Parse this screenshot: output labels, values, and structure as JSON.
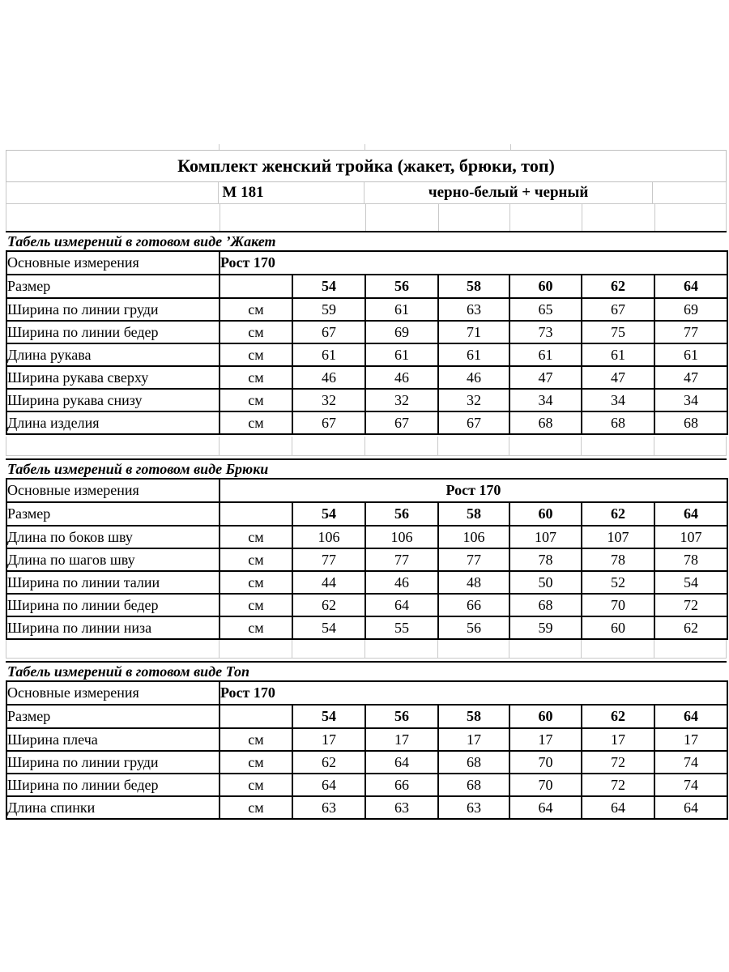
{
  "header": {
    "title": "Комплект женский тройка (жакет, брюки, топ)",
    "model": "М 181",
    "colorway": "черно-белый + черный"
  },
  "labels": {
    "base_measure": "Основные измерения",
    "rost": "Рост 170",
    "razmer": "Размер",
    "unit": "см"
  },
  "sizes": [
    "54",
    "56",
    "58",
    "60",
    "62",
    "64"
  ],
  "sections": [
    {
      "title": "Табель измерений в готовом виде ’Жакет",
      "rost_align": "left",
      "rows": [
        {
          "label": "Ширина по линии груди",
          "unit": "см",
          "values": [
            "59",
            "61",
            "63",
            "65",
            "67",
            "69"
          ]
        },
        {
          "label": "Ширина по линии бедер",
          "unit": "см",
          "values": [
            "67",
            "69",
            "71",
            "73",
            "75",
            "77"
          ]
        },
        {
          "label": "Длина рукава",
          "unit": "см",
          "values": [
            "61",
            "61",
            "61",
            "61",
            "61",
            "61"
          ]
        },
        {
          "label": "Ширина рукава сверху",
          "unit": "см",
          "values": [
            "46",
            "46",
            "46",
            "47",
            "47",
            "47"
          ]
        },
        {
          "label": "Ширина рукава снизу",
          "unit": "см",
          "values": [
            "32",
            "32",
            "32",
            "34",
            "34",
            "34"
          ]
        },
        {
          "label": "Длина изделия",
          "unit": "см",
          "values": [
            "67",
            "67",
            "67",
            "68",
            "68",
            "68"
          ]
        }
      ]
    },
    {
      "title": "Табель измерений в готовом виде Брюки",
      "rost_align": "center",
      "rows": [
        {
          "label": "Длина по боков шву",
          "unit": "см",
          "values": [
            "106",
            "106",
            "106",
            "107",
            "107",
            "107"
          ]
        },
        {
          "label": "Длина по шагов шву",
          "unit": "см",
          "values": [
            "77",
            "77",
            "77",
            "78",
            "78",
            "78"
          ]
        },
        {
          "label": "Ширина по линии талии",
          "unit": "см",
          "values": [
            "44",
            "46",
            "48",
            "50",
            "52",
            "54"
          ]
        },
        {
          "label": "Ширина по линии бедер",
          "unit": "см",
          "values": [
            "62",
            "64",
            "66",
            "68",
            "70",
            "72"
          ]
        },
        {
          "label": "Ширина по линии низа",
          "unit": "см",
          "values": [
            "54",
            "55",
            "56",
            "59",
            "60",
            "62"
          ]
        }
      ]
    },
    {
      "title": "Табель измерений в готовом виде Топ",
      "rost_align": "left",
      "rows": [
        {
          "label": "Ширина плеча",
          "unit": "см",
          "values": [
            "17",
            "17",
            "17",
            "17",
            "17",
            "17"
          ]
        },
        {
          "label": "Ширина по линии груди",
          "unit": "см",
          "values": [
            "62",
            "64",
            "68",
            "70",
            "72",
            "74"
          ]
        },
        {
          "label": "Ширина по линии бедер",
          "unit": "см",
          "values": [
            "64",
            "66",
            "68",
            "70",
            "72",
            "74"
          ]
        },
        {
          "label": "Длина спинки",
          "unit": "см",
          "values": [
            "63",
            "63",
            "63",
            "64",
            "64",
            "64"
          ]
        }
      ]
    }
  ]
}
